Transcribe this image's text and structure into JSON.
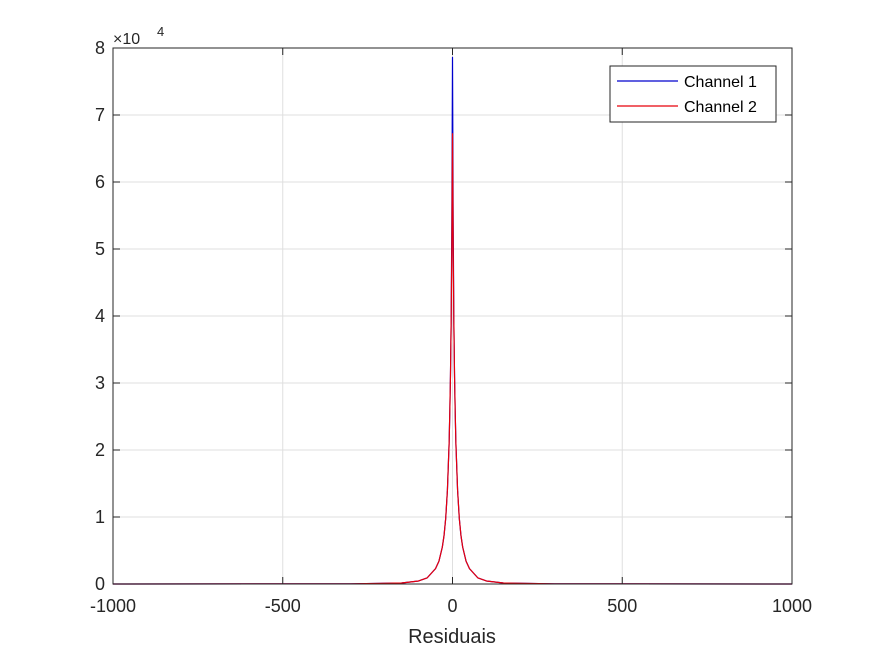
{
  "chart_data": {
    "type": "line",
    "title": "",
    "xlabel": "Residuais",
    "ylabel": "",
    "xlim": [
      -1000,
      1000
    ],
    "ylim": [
      0,
      80000
    ],
    "y_multiplier_label": "×10",
    "y_multiplier_exponent": "4",
    "x_ticks": [
      -1000,
      -500,
      0,
      500,
      1000
    ],
    "x_tick_labels": [
      "-1000",
      "-500",
      "0",
      "500",
      "1000"
    ],
    "y_ticks": [
      0,
      10000,
      20000,
      30000,
      40000,
      50000,
      60000,
      70000,
      80000
    ],
    "y_tick_labels": [
      "0",
      "1",
      "2",
      "3",
      "4",
      "5",
      "6",
      "7",
      "8"
    ],
    "grid": true,
    "legend_position": "top-right",
    "series": [
      {
        "name": "Channel 1",
        "color": "#0000cd",
        "x": [
          -1000,
          -300,
          -150,
          -100,
          -75,
          -50,
          -40,
          -30,
          -25,
          -20,
          -15,
          -10,
          -8,
          -6,
          -4,
          -2,
          0,
          2,
          4,
          6,
          8,
          10,
          15,
          20,
          25,
          30,
          40,
          50,
          75,
          100,
          150,
          300,
          1000
        ],
        "y": [
          0,
          30,
          150,
          450,
          900,
          2300,
          3400,
          5500,
          7200,
          9800,
          14000,
          21000,
          25500,
          31000,
          39000,
          54000,
          78600,
          54000,
          39000,
          31000,
          25500,
          21000,
          14000,
          9800,
          7200,
          5500,
          3400,
          2300,
          900,
          450,
          150,
          30,
          0
        ]
      },
      {
        "name": "Channel 2",
        "color": "#e8000b",
        "x": [
          -1000,
          -300,
          -150,
          -100,
          -75,
          -50,
          -40,
          -30,
          -25,
          -20,
          -15,
          -10,
          -8,
          -6,
          -4,
          -2,
          0,
          2,
          4,
          6,
          8,
          10,
          15,
          20,
          25,
          30,
          40,
          50,
          75,
          100,
          150,
          300,
          1000
        ],
        "y": [
          0,
          30,
          150,
          450,
          900,
          2300,
          3400,
          5500,
          7200,
          9800,
          14000,
          21000,
          25500,
          31000,
          39000,
          50000,
          67200,
          50000,
          39000,
          31000,
          25500,
          21000,
          14000,
          9800,
          7200,
          5500,
          3400,
          2300,
          900,
          450,
          150,
          30,
          0
        ]
      }
    ]
  }
}
